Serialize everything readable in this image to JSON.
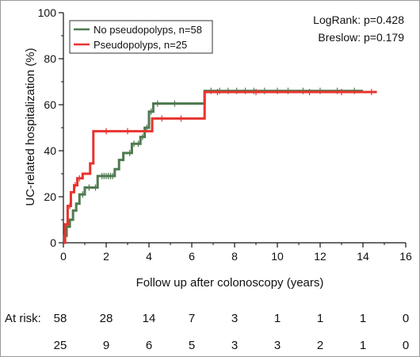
{
  "chart_data": {
    "type": "line",
    "title": "",
    "xlabel": "Follow up after colonoscopy (years)",
    "ylabel": "UC-related hospitalization (%)",
    "xlim": [
      0,
      16
    ],
    "ylim": [
      0,
      100
    ],
    "x_ticks": [
      "0",
      "2",
      "4",
      "6",
      "8",
      "10",
      "12",
      "14",
      "16"
    ],
    "y_ticks": [
      "0",
      "20",
      "40",
      "60",
      "80",
      "100"
    ],
    "grid": false,
    "legend_placement": "top-left",
    "annotations": [
      "LogRank: p=0.428",
      "Breslow: p=0.179"
    ],
    "series": [
      {
        "name": "No pseudopolyps, n=58",
        "color": "#4f7a4f",
        "x": [
          0,
          0.05,
          0.15,
          0.3,
          0.45,
          0.6,
          0.75,
          1.0,
          1.6,
          2.4,
          2.6,
          2.8,
          3.2,
          3.4,
          3.6,
          3.8,
          4.0,
          4.2,
          6.6,
          14.0
        ],
        "y": [
          0,
          3,
          7,
          10,
          14,
          17,
          21,
          24,
          29,
          32,
          36,
          39,
          43,
          43,
          46,
          50,
          57,
          60.5,
          66,
          66
        ],
        "censor_x": [
          0.9,
          1.2,
          1.5,
          1.8,
          1.9,
          2.0,
          2.1,
          2.2,
          2.3,
          3.1,
          3.3,
          3.5,
          3.7,
          3.9,
          4.1,
          4.4,
          5.2,
          6.9,
          7.3,
          7.7,
          8.1,
          8.5,
          8.9,
          9.4,
          10.0,
          10.5,
          11.2,
          12.0,
          12.8,
          13.6
        ]
      },
      {
        "name": "Pseudopolyps, n=25",
        "color": "#e8332f",
        "x": [
          0,
          0.08,
          0.2,
          0.35,
          0.5,
          0.65,
          0.9,
          1.1,
          1.25,
          1.4,
          2.45,
          4.15,
          6.6,
          14.65
        ],
        "y": [
          0,
          8,
          16,
          22,
          25,
          28,
          30,
          30,
          34.5,
          48.5,
          48.5,
          54,
          65.5,
          65.5
        ],
        "censor_x": [
          0.3,
          0.55,
          0.75,
          2.0,
          3.0,
          4.6,
          5.5,
          7.2,
          9.0,
          11.5,
          13.0,
          14.4
        ]
      }
    ],
    "at_risk": {
      "label": "At risk:",
      "times": [
        0,
        2,
        4,
        6,
        8,
        10,
        12,
        14,
        16
      ],
      "rows": [
        [
          "58",
          "28",
          "14",
          "7",
          "3",
          "1",
          "1",
          "1",
          "0"
        ],
        [
          "25",
          "9",
          "6",
          "5",
          "3",
          "3",
          "2",
          "1",
          "0"
        ]
      ]
    }
  }
}
